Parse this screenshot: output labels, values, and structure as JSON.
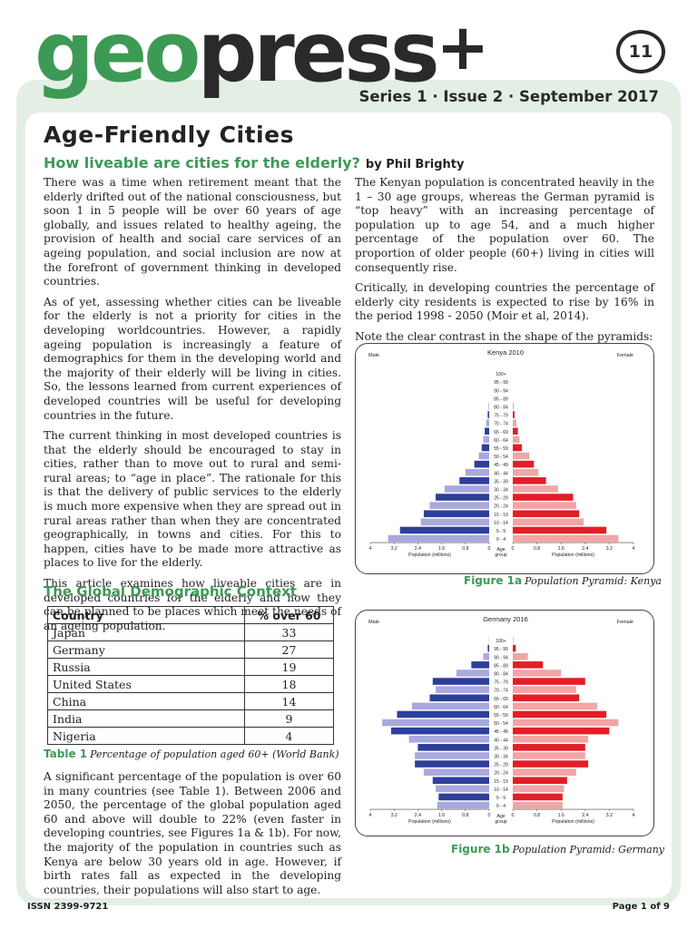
{
  "header": {
    "logo_geo": "geo",
    "logo_press": "press",
    "logo_plus": "+",
    "issue_number": "11",
    "series": "Series 1 · Issue 2 · September 2017"
  },
  "article": {
    "title": "Age-Friendly Cities",
    "subtitle": "How liveable are cities for the elderly?",
    "byline": "by Phil Brighty",
    "left_paragraphs": [
      "There was a time when retirement meant that the elderly drifted out of the national consciousness, but soon 1 in 5 people will be over 60 years of age globally, and issues related to healthy ageing, the provision of health and social care services of an ageing population, and social inclusion are now at the forefront of government thinking in developed countries.",
      "As of yet, assessing whether cities can be liveable for the elderly is not a priority for cities in the developing worldcountries. However, a rapidly ageing population is increasingly a feature of demographics for them in the developing world and the majority of their elderly will be living in cities. So, the lessons learned from current experiences of developed countries will be useful for developing countries in the future.",
      "The current thinking in most developed countries is that the elderly should be encouraged to stay in cities, rather than to move out to rural and semi-rural areas; to “age in place”. The rationale for this is that the delivery of public services to the elderly is much more expensive when they are spread out in rural areas rather than when they are concentrated geographically, in towns and cities. For this to happen, cities have to be made more attractive as places to live for the elderly.",
      "This article examines how liveable cities are in developed countries for the elderly and how they can be planned to be places which meet the needs of an ageing population."
    ],
    "right_paragraphs": [
      "The Kenyan population is concentrated heavily in the 1 – 30 age groups, whereas the German pyramid is “top heavy” with an increasing percentage of population up to age 54, and a much higher percentage of the population over 60. The proportion of older people (60+) living in cities will consequently rise.",
      "Critically, in developing countries the percentage of elderly city residents is expected to rise by 16% in the period 1998 - 2050 (Moir et al, 2014).",
      "Note the clear contrast in the shape of the pyramids:"
    ],
    "section_heading": "The Global Demographic Context",
    "lower_paragraph": "A significant percentage of the population is over 60 in many countries (see Table 1). Between 2006 and 2050, the percentage of the global population aged 60 and above will double to 22% (even faster in developing countries, see Figures 1a & 1b). For now, the majority of the population in countries such as Kenya are below 30 years old in age. However, if birth rates fall as expected in the developing countries, their populations will also start to age."
  },
  "table": {
    "headers": [
      "Country",
      "% over 60"
    ],
    "rows": [
      [
        "Japan",
        "33"
      ],
      [
        "Germany",
        "27"
      ],
      [
        "Russia",
        "19"
      ],
      [
        "United States",
        "18"
      ],
      [
        "China",
        "14"
      ],
      [
        "India",
        "9"
      ],
      [
        "Nigeria",
        "4"
      ]
    ],
    "caption_label": "Table 1",
    "caption_text": "Percentage of population aged 60+ (World Bank)"
  },
  "figures": {
    "fig1a_label": "Figure 1a",
    "fig1a_text": "Population Pyramid: Kenya",
    "fig1b_label": "Figure 1b",
    "fig1b_text": "Population Pyramid: Germany"
  },
  "colors": {
    "brand_green": "#3d9a55",
    "male_dark": "#2e3f9a",
    "male_light": "#a9a9df",
    "female_dark": "#e11f26",
    "female_light": "#f2a5a5"
  },
  "chart_data": [
    {
      "type": "bar",
      "title": "Kenya 2010",
      "left_label": "Male",
      "right_label": "Female",
      "center_label": "Age group",
      "xlabel": "Population (millions)",
      "xlim": [
        0,
        4
      ],
      "ticks_left": [
        "4",
        "3.2",
        "2.4",
        "1.6",
        "0.8",
        "0"
      ],
      "ticks_right": [
        "0",
        "0.8",
        "1.6",
        "2.4",
        "3.2",
        "4"
      ],
      "categories": [
        "100+",
        "95 - 99",
        "90 - 94",
        "85 - 89",
        "80 - 84",
        "75 - 79",
        "70 - 74",
        "65 - 69",
        "60 - 64",
        "55 - 59",
        "50 - 54",
        "45 - 49",
        "40 - 44",
        "35 - 39",
        "30 - 34",
        "25 - 29",
        "20 - 24",
        "15 - 19",
        "10 - 14",
        "5 - 9",
        "0 - 4"
      ],
      "series": [
        {
          "name": "Male",
          "values": [
            0,
            0,
            0,
            0,
            0.02,
            0.05,
            0.1,
            0.15,
            0.2,
            0.25,
            0.35,
            0.5,
            0.8,
            1.0,
            1.5,
            1.8,
            2.0,
            2.2,
            2.3,
            3.0,
            3.4
          ]
        },
        {
          "name": "Female",
          "values": [
            0,
            0,
            0,
            0,
            0.03,
            0.06,
            0.12,
            0.17,
            0.22,
            0.3,
            0.55,
            0.7,
            0.85,
            1.1,
            1.5,
            2.0,
            2.1,
            2.2,
            2.35,
            3.1,
            3.5
          ]
        }
      ]
    },
    {
      "type": "bar",
      "title": "Germany 2016",
      "left_label": "Male",
      "right_label": "Female",
      "center_label": "Age group",
      "xlabel": "Population (millions)",
      "xlim": [
        0,
        4
      ],
      "ticks_left": [
        "4",
        "3.2",
        "2.4",
        "1.6",
        "0.8",
        "0"
      ],
      "ticks_right": [
        "0",
        "0.8",
        "1.6",
        "2.4",
        "3.2",
        "4"
      ],
      "categories": [
        "100+",
        "95 - 99",
        "90 - 94",
        "85 - 89",
        "80 - 84",
        "75 - 79",
        "70 - 74",
        "65 - 69",
        "60 - 64",
        "55 - 59",
        "50 - 54",
        "45 - 49",
        "40 - 44",
        "35 - 39",
        "30 - 34",
        "25 - 29",
        "20 - 24",
        "15 - 19",
        "10 - 14",
        "5 - 9",
        "0 - 4"
      ],
      "series": [
        {
          "name": "Male",
          "values": [
            0.01,
            0.05,
            0.2,
            0.6,
            1.1,
            1.9,
            1.8,
            2.0,
            2.6,
            3.1,
            3.6,
            3.3,
            2.7,
            2.4,
            2.5,
            2.5,
            2.2,
            1.9,
            1.8,
            1.7,
            1.75
          ]
        },
        {
          "name": "Female",
          "values": [
            0.02,
            0.1,
            0.5,
            1.0,
            1.6,
            2.4,
            2.1,
            2.2,
            2.8,
            3.1,
            3.5,
            3.2,
            2.5,
            2.4,
            2.4,
            2.5,
            2.1,
            1.8,
            1.7,
            1.65,
            1.65
          ]
        }
      ]
    }
  ],
  "footer": {
    "issn": "ISSN 2399-9721",
    "page": "Page 1 of 9"
  }
}
